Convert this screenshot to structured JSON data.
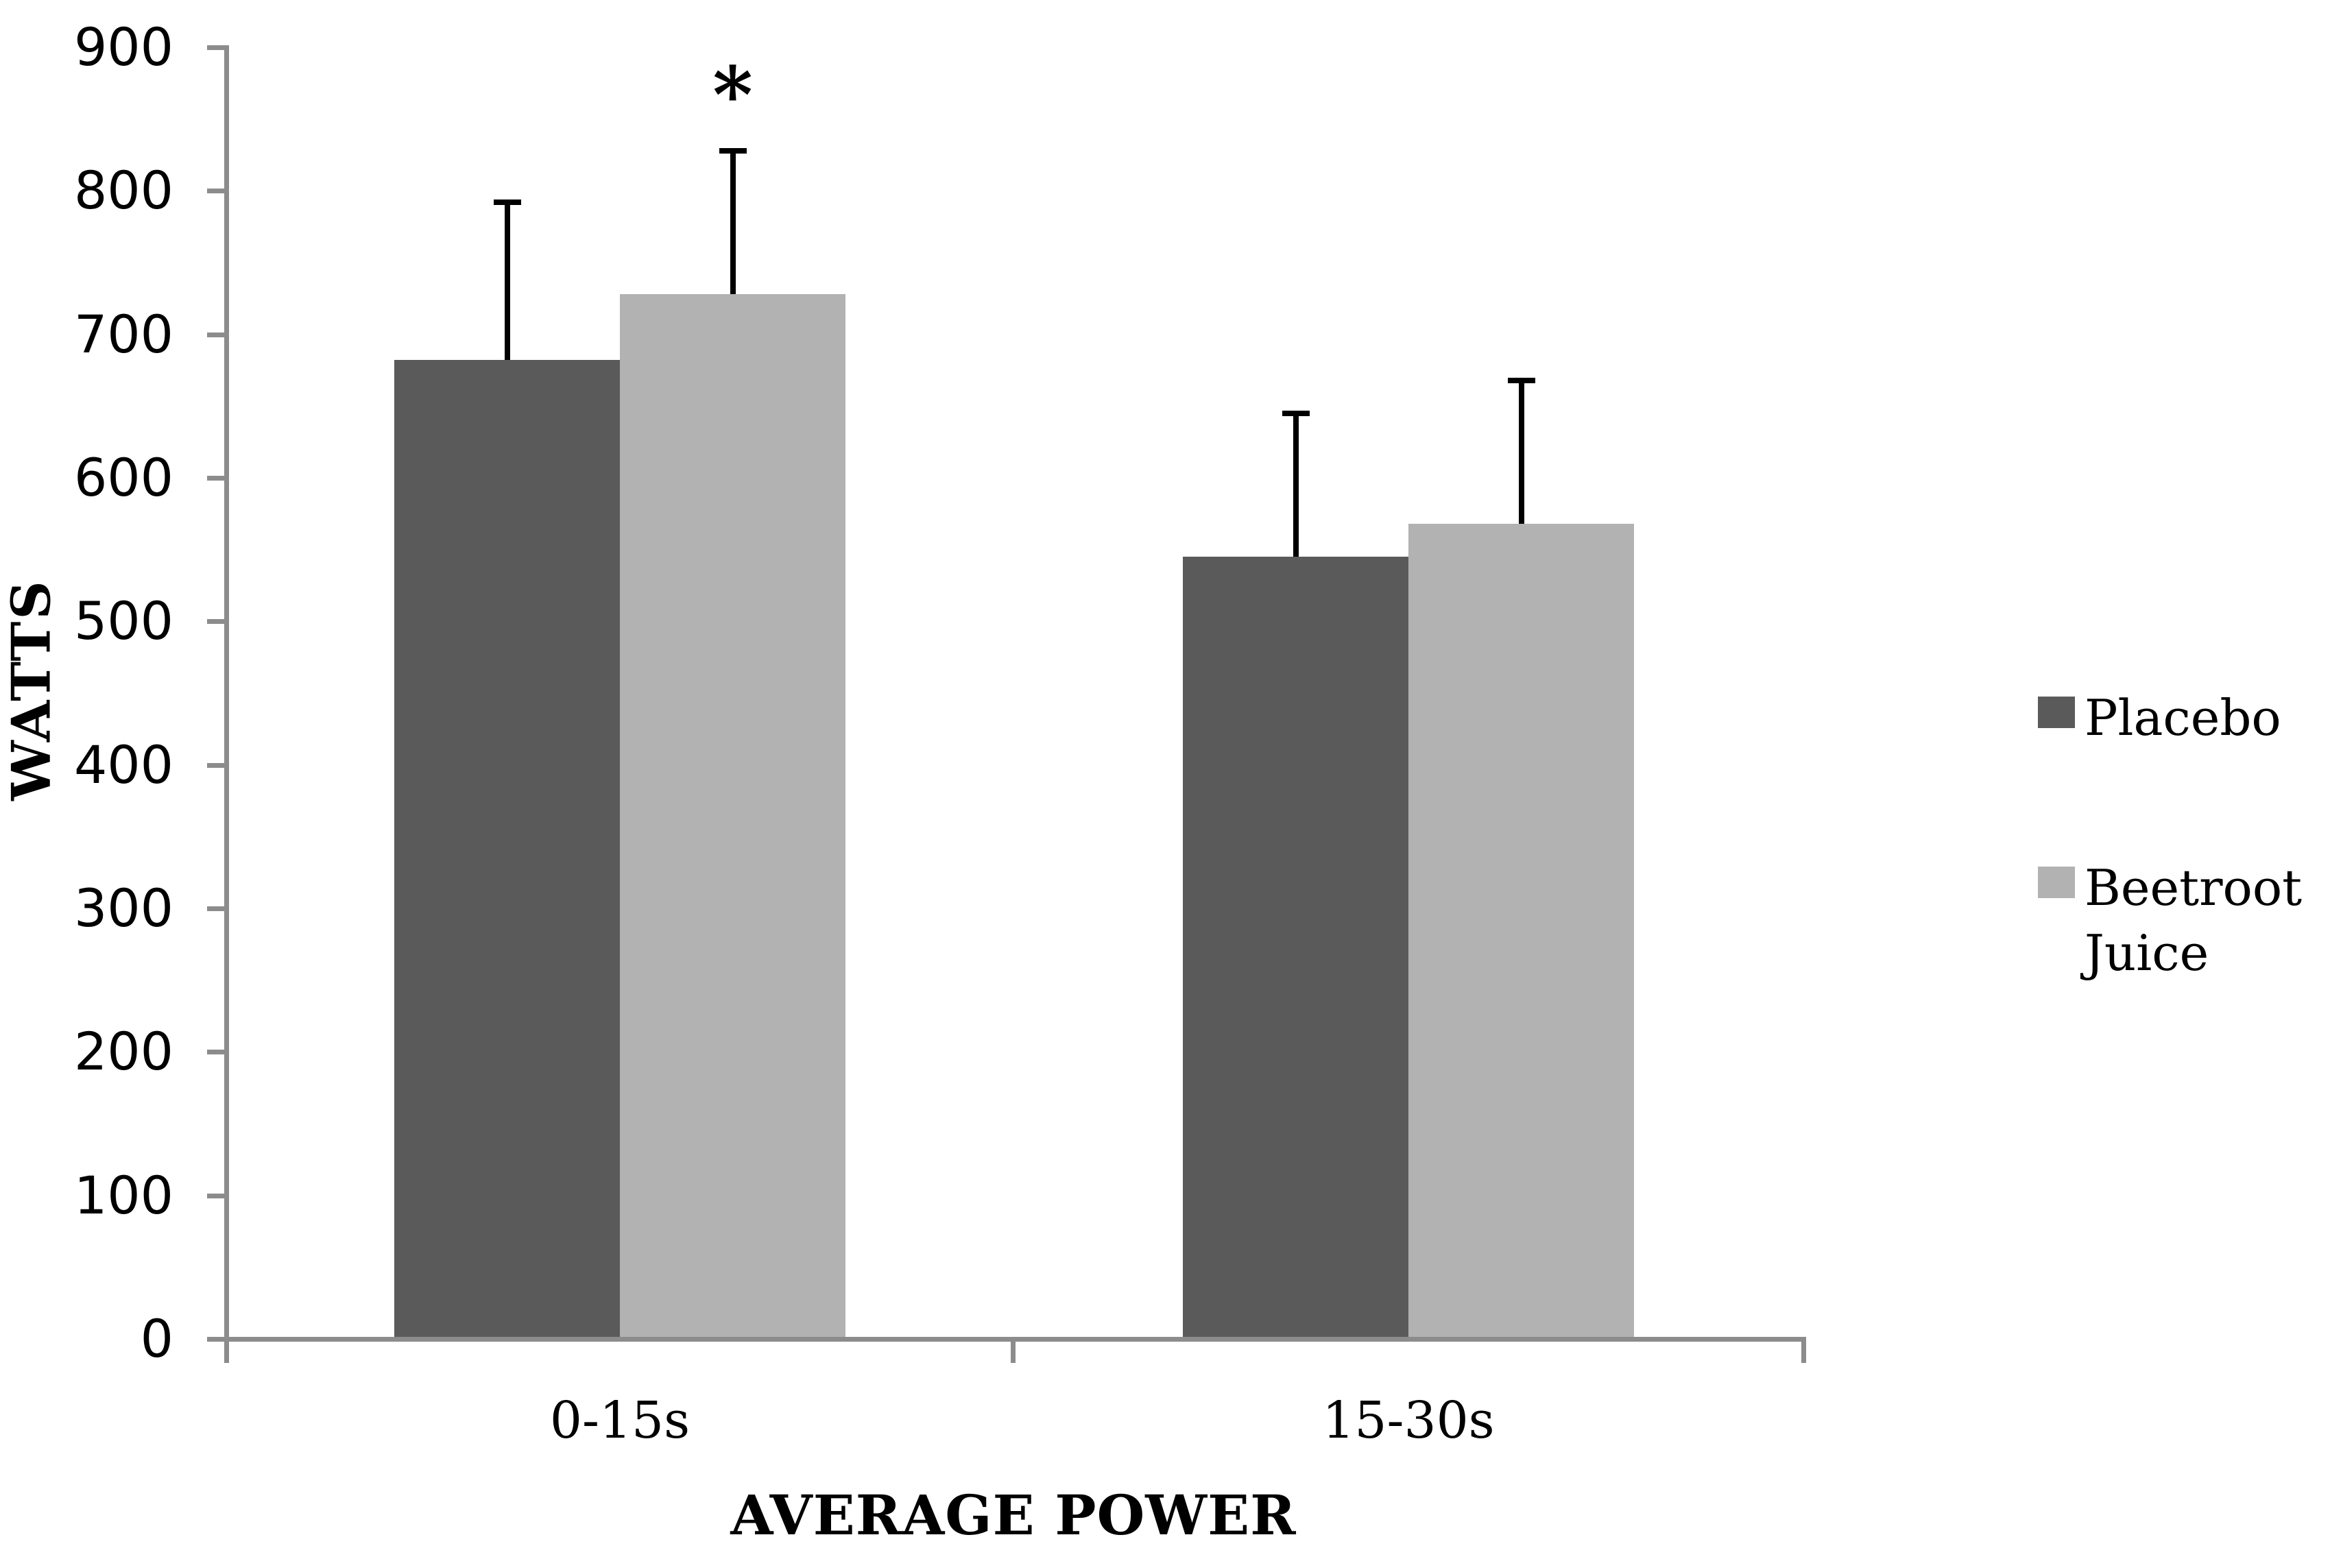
{
  "chart_data": {
    "type": "bar",
    "title": "",
    "xlabel": "AVERAGE POWER",
    "ylabel": "WATTS",
    "categories": [
      "0-15s",
      "15-30s"
    ],
    "series": [
      {
        "name": "Placebo",
        "color": "#5a5a5a",
        "values": [
          682,
          545
        ],
        "errors_plus": [
          110,
          100
        ]
      },
      {
        "name": "Beetroot Juice",
        "color": "#b2b2b2",
        "values": [
          728,
          568
        ],
        "errors_plus": [
          100,
          100
        ]
      }
    ],
    "significance_marker": {
      "text": "*",
      "category_index": 0,
      "series_index": 1
    },
    "ylim": [
      0,
      900
    ],
    "yticks": [
      900,
      800,
      700,
      600,
      500,
      400,
      300,
      200,
      100,
      0
    ],
    "ytick_step": 100,
    "grid": false,
    "legend_position": "right",
    "error_bars": "plus_only",
    "axis_color": "#8c8c8c",
    "text_color": "#000000",
    "background_color": "#ffffff"
  }
}
